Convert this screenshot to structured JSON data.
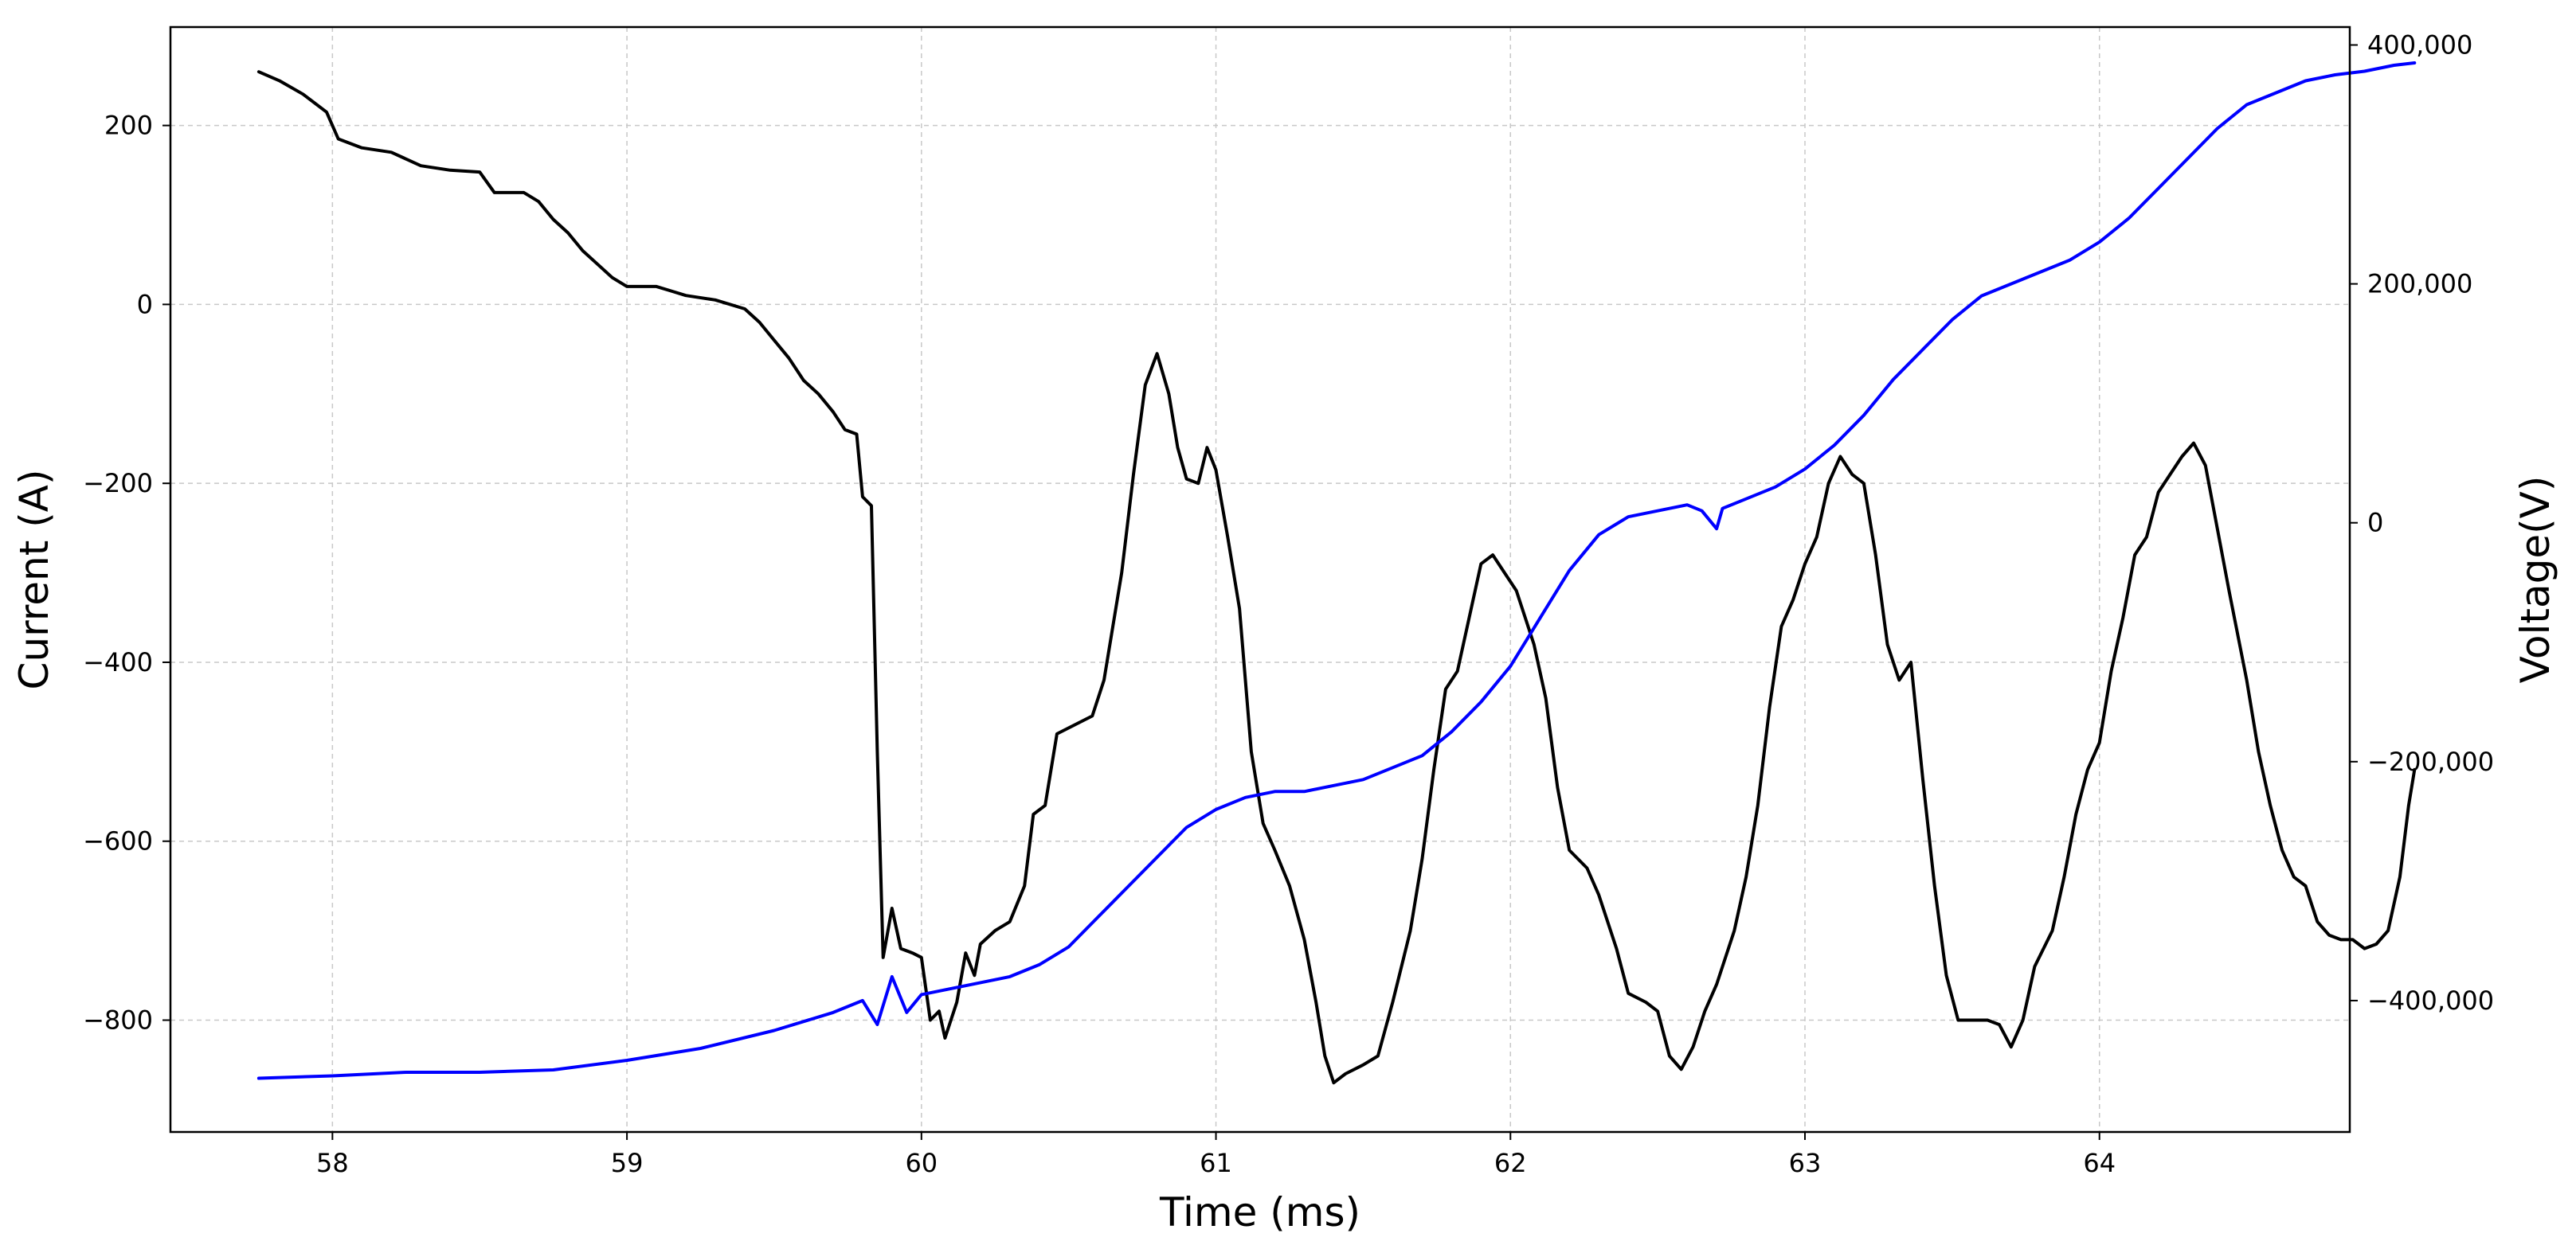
{
  "chart_data": {
    "type": "line",
    "title": "",
    "xlabel": "Time (ms)",
    "ylabel": "Current (A)",
    "y2label": "Voltage(V)",
    "xlim": [
      57.45,
      64.85
    ],
    "ylim": [
      -925,
      310
    ],
    "y2lim": [
      -510000,
      415000
    ],
    "grid": true,
    "legend": "none",
    "x_ticks": [
      58,
      59,
      60,
      61,
      62,
      63,
      64
    ],
    "y_ticks": [
      200,
      0,
      -200,
      -400,
      -600,
      -800
    ],
    "y_tick_labels": [
      "200",
      "0",
      "−200",
      "−400",
      "−600",
      "−800"
    ],
    "y2_ticks": [
      400000,
      200000,
      0,
      -200000,
      -400000
    ],
    "y2_tick_labels": [
      "400,000",
      "200,000",
      "0",
      "−200,000",
      "−400,000"
    ],
    "series": [
      {
        "axis": "left",
        "color": "#000000",
        "points": [
          [
            57.75,
            260
          ],
          [
            57.82,
            250
          ],
          [
            57.9,
            235
          ],
          [
            57.98,
            215
          ],
          [
            58.02,
            185
          ],
          [
            58.1,
            175
          ],
          [
            58.2,
            170
          ],
          [
            58.3,
            155
          ],
          [
            58.4,
            150
          ],
          [
            58.5,
            148
          ],
          [
            58.55,
            125
          ],
          [
            58.65,
            125
          ],
          [
            58.7,
            115
          ],
          [
            58.75,
            95
          ],
          [
            58.8,
            80
          ],
          [
            58.85,
            60
          ],
          [
            58.9,
            45
          ],
          [
            58.95,
            30
          ],
          [
            59.0,
            20
          ],
          [
            59.1,
            20
          ],
          [
            59.15,
            15
          ],
          [
            59.2,
            10
          ],
          [
            59.3,
            5
          ],
          [
            59.4,
            -5
          ],
          [
            59.45,
            -20
          ],
          [
            59.5,
            -40
          ],
          [
            59.55,
            -60
          ],
          [
            59.6,
            -85
          ],
          [
            59.65,
            -100
          ],
          [
            59.7,
            -120
          ],
          [
            59.74,
            -140
          ],
          [
            59.78,
            -145
          ],
          [
            59.8,
            -215
          ],
          [
            59.83,
            -225
          ],
          [
            59.85,
            -500
          ],
          [
            59.87,
            -730
          ],
          [
            59.9,
            -675
          ],
          [
            59.93,
            -720
          ],
          [
            59.97,
            -725
          ],
          [
            60.0,
            -730
          ],
          [
            60.03,
            -800
          ],
          [
            60.06,
            -790
          ],
          [
            60.08,
            -820
          ],
          [
            60.12,
            -780
          ],
          [
            60.15,
            -725
          ],
          [
            60.18,
            -750
          ],
          [
            60.2,
            -715
          ],
          [
            60.25,
            -700
          ],
          [
            60.3,
            -690
          ],
          [
            60.35,
            -650
          ],
          [
            60.38,
            -570
          ],
          [
            60.42,
            -560
          ],
          [
            60.46,
            -480
          ],
          [
            60.52,
            -470
          ],
          [
            60.58,
            -460
          ],
          [
            60.62,
            -420
          ],
          [
            60.68,
            -300
          ],
          [
            60.72,
            -190
          ],
          [
            60.76,
            -90
          ],
          [
            60.8,
            -55
          ],
          [
            60.84,
            -100
          ],
          [
            60.87,
            -160
          ],
          [
            60.9,
            -195
          ],
          [
            60.94,
            -200
          ],
          [
            60.97,
            -160
          ],
          [
            61.0,
            -185
          ],
          [
            61.04,
            -260
          ],
          [
            61.08,
            -340
          ],
          [
            61.12,
            -500
          ],
          [
            61.16,
            -580
          ],
          [
            61.2,
            -610
          ],
          [
            61.25,
            -650
          ],
          [
            61.3,
            -710
          ],
          [
            61.34,
            -780
          ],
          [
            61.37,
            -840
          ],
          [
            61.4,
            -870
          ],
          [
            61.44,
            -860
          ],
          [
            61.5,
            -850
          ],
          [
            61.55,
            -840
          ],
          [
            61.6,
            -780
          ],
          [
            61.66,
            -700
          ],
          [
            61.7,
            -620
          ],
          [
            61.74,
            -520
          ],
          [
            61.78,
            -430
          ],
          [
            61.82,
            -410
          ],
          [
            61.86,
            -350
          ],
          [
            61.9,
            -290
          ],
          [
            61.94,
            -280
          ],
          [
            61.98,
            -300
          ],
          [
            62.02,
            -320
          ],
          [
            62.08,
            -380
          ],
          [
            62.12,
            -440
          ],
          [
            62.16,
            -540
          ],
          [
            62.2,
            -610
          ],
          [
            62.26,
            -630
          ],
          [
            62.3,
            -660
          ],
          [
            62.36,
            -720
          ],
          [
            62.4,
            -770
          ],
          [
            62.46,
            -780
          ],
          [
            62.5,
            -790
          ],
          [
            62.54,
            -840
          ],
          [
            62.58,
            -855
          ],
          [
            62.62,
            -830
          ],
          [
            62.66,
            -790
          ],
          [
            62.7,
            -760
          ],
          [
            62.76,
            -700
          ],
          [
            62.8,
            -640
          ],
          [
            62.84,
            -560
          ],
          [
            62.88,
            -450
          ],
          [
            62.92,
            -360
          ],
          [
            62.96,
            -330
          ],
          [
            63.0,
            -290
          ],
          [
            63.04,
            -260
          ],
          [
            63.08,
            -200
          ],
          [
            63.12,
            -170
          ],
          [
            63.16,
            -190
          ],
          [
            63.2,
            -200
          ],
          [
            63.24,
            -280
          ],
          [
            63.28,
            -380
          ],
          [
            63.32,
            -420
          ],
          [
            63.36,
            -400
          ],
          [
            63.4,
            -530
          ],
          [
            63.44,
            -650
          ],
          [
            63.48,
            -750
          ],
          [
            63.52,
            -800
          ],
          [
            63.58,
            -800
          ],
          [
            63.62,
            -800
          ],
          [
            63.66,
            -805
          ],
          [
            63.7,
            -830
          ],
          [
            63.74,
            -800
          ],
          [
            63.78,
            -740
          ],
          [
            63.84,
            -700
          ],
          [
            63.88,
            -640
          ],
          [
            63.92,
            -570
          ],
          [
            63.96,
            -520
          ],
          [
            64.0,
            -490
          ],
          [
            64.04,
            -410
          ],
          [
            64.08,
            -350
          ],
          [
            64.12,
            -280
          ],
          [
            64.16,
            -260
          ],
          [
            64.2,
            -210
          ],
          [
            64.24,
            -190
          ],
          [
            64.28,
            -170
          ],
          [
            64.32,
            -155
          ],
          [
            64.36,
            -180
          ],
          [
            64.4,
            -250
          ],
          [
            64.44,
            -320
          ],
          [
            64.5,
            -420
          ],
          [
            64.54,
            -500
          ],
          [
            64.58,
            -560
          ],
          [
            64.62,
            -610
          ],
          [
            64.66,
            -640
          ],
          [
            64.7,
            -650
          ],
          [
            64.74,
            -690
          ],
          [
            64.78,
            -705
          ],
          [
            64.82,
            -710
          ],
          [
            64.86,
            -710
          ],
          [
            64.9,
            -720
          ],
          [
            64.94,
            -715
          ],
          [
            64.98,
            -700
          ],
          [
            65.02,
            -640
          ],
          [
            65.05,
            -560
          ],
          [
            65.07,
            -520
          ]
        ]
      },
      {
        "axis": "right",
        "color": "#0000ff",
        "points": [
          [
            57.75,
            -465000
          ],
          [
            58.0,
            -463000
          ],
          [
            58.25,
            -460000
          ],
          [
            58.5,
            -460000
          ],
          [
            58.75,
            -458000
          ],
          [
            59.0,
            -450000
          ],
          [
            59.25,
            -440000
          ],
          [
            59.5,
            -425000
          ],
          [
            59.7,
            -410000
          ],
          [
            59.8,
            -400000
          ],
          [
            59.85,
            -420000
          ],
          [
            59.9,
            -380000
          ],
          [
            59.95,
            -410000
          ],
          [
            60.0,
            -395000
          ],
          [
            60.1,
            -390000
          ],
          [
            60.2,
            -385000
          ],
          [
            60.3,
            -380000
          ],
          [
            60.4,
            -370000
          ],
          [
            60.5,
            -355000
          ],
          [
            60.6,
            -330000
          ],
          [
            60.7,
            -305000
          ],
          [
            60.8,
            -280000
          ],
          [
            60.9,
            -255000
          ],
          [
            61.0,
            -240000
          ],
          [
            61.1,
            -230000
          ],
          [
            61.2,
            -225000
          ],
          [
            61.3,
            -225000
          ],
          [
            61.4,
            -220000
          ],
          [
            61.5,
            -215000
          ],
          [
            61.6,
            -205000
          ],
          [
            61.7,
            -195000
          ],
          [
            61.8,
            -175000
          ],
          [
            61.9,
            -150000
          ],
          [
            62.0,
            -120000
          ],
          [
            62.1,
            -80000
          ],
          [
            62.2,
            -40000
          ],
          [
            62.3,
            -10000
          ],
          [
            62.4,
            5000
          ],
          [
            62.5,
            10000
          ],
          [
            62.6,
            15000
          ],
          [
            62.65,
            10000
          ],
          [
            62.7,
            -5000
          ],
          [
            62.72,
            12000
          ],
          [
            62.8,
            20000
          ],
          [
            62.9,
            30000
          ],
          [
            63.0,
            45000
          ],
          [
            63.1,
            65000
          ],
          [
            63.2,
            90000
          ],
          [
            63.3,
            120000
          ],
          [
            63.4,
            145000
          ],
          [
            63.5,
            170000
          ],
          [
            63.6,
            190000
          ],
          [
            63.7,
            200000
          ],
          [
            63.8,
            210000
          ],
          [
            63.9,
            220000
          ],
          [
            64.0,
            235000
          ],
          [
            64.1,
            255000
          ],
          [
            64.2,
            280000
          ],
          [
            64.3,
            305000
          ],
          [
            64.4,
            330000
          ],
          [
            64.5,
            350000
          ],
          [
            64.6,
            360000
          ],
          [
            64.7,
            370000
          ],
          [
            64.8,
            375000
          ],
          [
            64.9,
            378000
          ],
          [
            65.0,
            383000
          ],
          [
            65.07,
            385000
          ]
        ]
      }
    ]
  }
}
